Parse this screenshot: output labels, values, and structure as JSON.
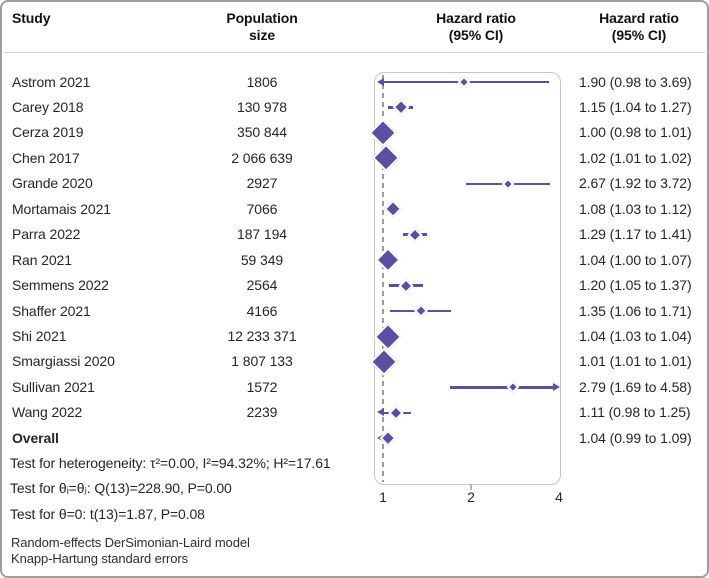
{
  "header": {
    "study": "Study",
    "population": "Population\nsize",
    "hr_plot": "Hazard ratio\n(95% CI)",
    "hr_text": "Hazard ratio\n(95% CI)"
  },
  "colors": {
    "marker": "#5b4fa2",
    "panel_border": "#c6c6c6",
    "ref_line": "#9b9b9b",
    "text": "#262626"
  },
  "chart_data": {
    "type": "forest",
    "x_scale": "log2",
    "xlim": [
      1,
      4
    ],
    "ticks": [
      1,
      2,
      4
    ],
    "tick_marks": [
      2
    ],
    "reference_value": 1,
    "studies": [
      {
        "study": "Astrom 2021",
        "population": "1806",
        "hr": 1.9,
        "lo": 0.98,
        "hi": 3.69,
        "label": "1.90 (0.98 to 3.69)",
        "size": 7
      },
      {
        "study": "Carey 2018",
        "population": "130 978",
        "hr": 1.15,
        "lo": 1.04,
        "hi": 1.27,
        "label": "1.15 (1.04 to 1.27)",
        "size": 11
      },
      {
        "study": "Cerza 2019",
        "population": "350 844",
        "hr": 1.0,
        "lo": 0.98,
        "hi": 1.01,
        "label": "1.00 (0.98 to 1.01)",
        "size": 23
      },
      {
        "study": "Chen 2017",
        "population": "2 066 639",
        "hr": 1.02,
        "lo": 1.01,
        "hi": 1.02,
        "label": "1.02 (1.01 to 1.02)",
        "size": 23
      },
      {
        "study": "Grande 2020",
        "population": "2927",
        "hr": 2.67,
        "lo": 1.92,
        "hi": 3.72,
        "label": "2.67 (1.92 to 3.72)",
        "size": 7
      },
      {
        "study": "Mortamais 2021",
        "population": "7066",
        "hr": 1.08,
        "lo": 1.03,
        "hi": 1.12,
        "label": "1.08 (1.03 to 1.12)",
        "size": 13
      },
      {
        "study": "Parra 2022",
        "population": "187 194",
        "hr": 1.29,
        "lo": 1.17,
        "hi": 1.41,
        "label": "1.29 (1.17 to 1.41)",
        "size": 10
      },
      {
        "study": "Ran 2021",
        "population": "59 349",
        "hr": 1.04,
        "lo": 1.0,
        "hi": 1.07,
        "label": "1.04 (1.00 to 1.07)",
        "size": 20
      },
      {
        "study": "Semmens 2022",
        "population": "2564",
        "hr": 1.2,
        "lo": 1.05,
        "hi": 1.37,
        "label": "1.20 (1.05 to 1.37)",
        "size": 10
      },
      {
        "study": "Shaffer 2021",
        "population": "4166",
        "hr": 1.35,
        "lo": 1.06,
        "hi": 1.71,
        "label": "1.35 (1.06 to 1.71)",
        "size": 9
      },
      {
        "study": "Shi 2021",
        "population": "12 233 371",
        "hr": 1.04,
        "lo": 1.03,
        "hi": 1.04,
        "label": "1.04 (1.03 to 1.04)",
        "size": 23
      },
      {
        "study": "Smargiassi 2020",
        "population": "1 807 133",
        "hr": 1.01,
        "lo": 1.01,
        "hi": 1.01,
        "label": "1.01 (1.01 to 1.01)",
        "size": 23
      },
      {
        "study": "Sullivan 2021",
        "population": "1572",
        "hr": 2.79,
        "lo": 1.69,
        "hi": 4.58,
        "label": "2.79 (1.69 to 4.58)",
        "size": 7
      },
      {
        "study": "Wang 2022",
        "population": "2239",
        "hr": 1.11,
        "lo": 0.98,
        "hi": 1.25,
        "label": "1.11 (0.98 to 1.25)",
        "size": 10
      }
    ],
    "overall": {
      "study": "Overall",
      "population": null,
      "hr": 1.04,
      "lo": 0.99,
      "hi": 1.09,
      "label": "1.04 (0.99 to 1.09)",
      "size": 11
    }
  },
  "tests": [
    "Test for heterogeneity: τ²=0.00, I²=94.32%; H²=17.61",
    "Test for θᵢ=θⱼ: Q(13)=228.90, P=0.00",
    "Test for θ=0: t(13)=1.87, P=0.08"
  ],
  "footnotes": [
    "Random-effects DerSimonian-Laird model",
    "Knapp-Hartung standard errors"
  ]
}
